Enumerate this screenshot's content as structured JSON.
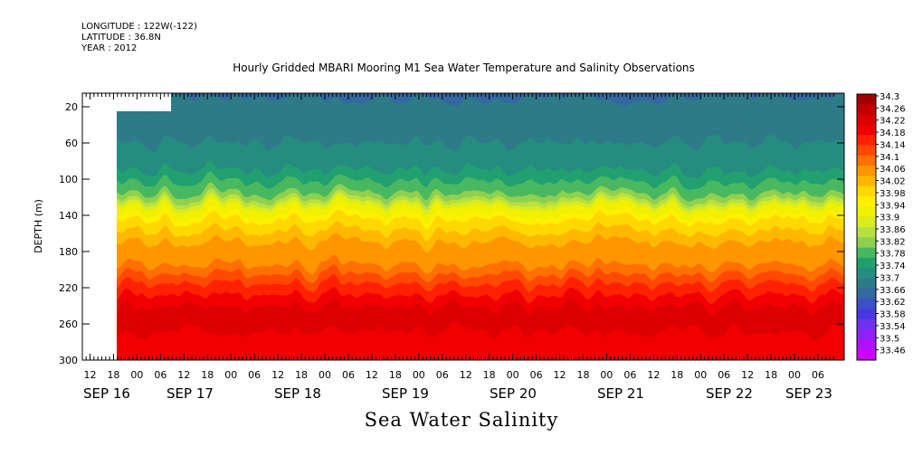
{
  "header": {
    "longitude": "LONGITUDE : 122W(-122)",
    "latitude": "LATITUDE : 36.8N",
    "year": "YEAR : 2012"
  },
  "chart_data": {
    "type": "heatmap",
    "title": "Hourly Gridded MBARI Mooring M1 Sea Water Temperature and Salinity Observations",
    "xlabel": "Sea Water Salinity",
    "ylabel": "DEPTH (m)",
    "x_hour_tick_labels": [
      "12",
      "18",
      "00",
      "06",
      "12",
      "18",
      "00",
      "06",
      "12",
      "18",
      "00",
      "06",
      "12",
      "18",
      "00",
      "06",
      "12",
      "18",
      "00",
      "06",
      "12",
      "18",
      "00",
      "06",
      "12",
      "18",
      "00",
      "06",
      "12",
      "18",
      "00",
      "06"
    ],
    "x_date_labels": [
      "SEP 16",
      "SEP 17",
      "SEP 18",
      "SEP 19",
      "SEP 20",
      "SEP 21",
      "SEP 22",
      "SEP 23"
    ],
    "x_range": [
      "2012-09-16 09:00",
      "2012-09-23 15:00"
    ],
    "y_tick_labels": [
      "20",
      "60",
      "100",
      "140",
      "180",
      "220",
      "260",
      "300"
    ],
    "y_range": [
      5,
      300
    ],
    "y_inverted": true,
    "colorbar_levels": [
      "34.3",
      "34.26",
      "34.22",
      "34.18",
      "34.14",
      "34.1",
      "34.06",
      "34.02",
      "33.98",
      "33.94",
      "33.9",
      "33.86",
      "33.82",
      "33.78",
      "33.74",
      "33.7",
      "33.66",
      "33.62",
      "33.58",
      "33.54",
      "33.5",
      "33.46"
    ],
    "colorbar_colors": [
      "#a00000",
      "#c00000",
      "#dd0000",
      "#f00000",
      "#ff2000",
      "#ff4800",
      "#ff7000",
      "#ff9600",
      "#ffb800",
      "#ffd800",
      "#fff000",
      "#f0f000",
      "#d8ec20",
      "#b8e040",
      "#90d050",
      "#48b860",
      "#20a070",
      "#258c80",
      "#2d7a88",
      "#3468a0",
      "#3c50c8",
      "#4838e0",
      "#7030f0",
      "#9020f8",
      "#b010ff",
      "#d000ff"
    ],
    "profile": [
      {
        "depth": 5,
        "salinity": 33.56
      },
      {
        "depth": 12,
        "salinity": 33.58
      },
      {
        "depth": 30,
        "salinity": 33.6
      },
      {
        "depth": 60,
        "salinity": 33.62
      },
      {
        "depth": 90,
        "salinity": 33.66
      },
      {
        "depth": 115,
        "salinity": 33.74
      },
      {
        "depth": 130,
        "salinity": 33.86
      },
      {
        "depth": 145,
        "salinity": 33.94
      },
      {
        "depth": 170,
        "salinity": 34.02
      },
      {
        "depth": 195,
        "salinity": 34.06
      },
      {
        "depth": 215,
        "salinity": 34.14
      },
      {
        "depth": 235,
        "salinity": 34.2
      },
      {
        "depth": 255,
        "salinity": 34.26
      },
      {
        "depth": 275,
        "salinity": 34.2
      },
      {
        "depth": 300,
        "salinity": 34.18
      }
    ]
  }
}
